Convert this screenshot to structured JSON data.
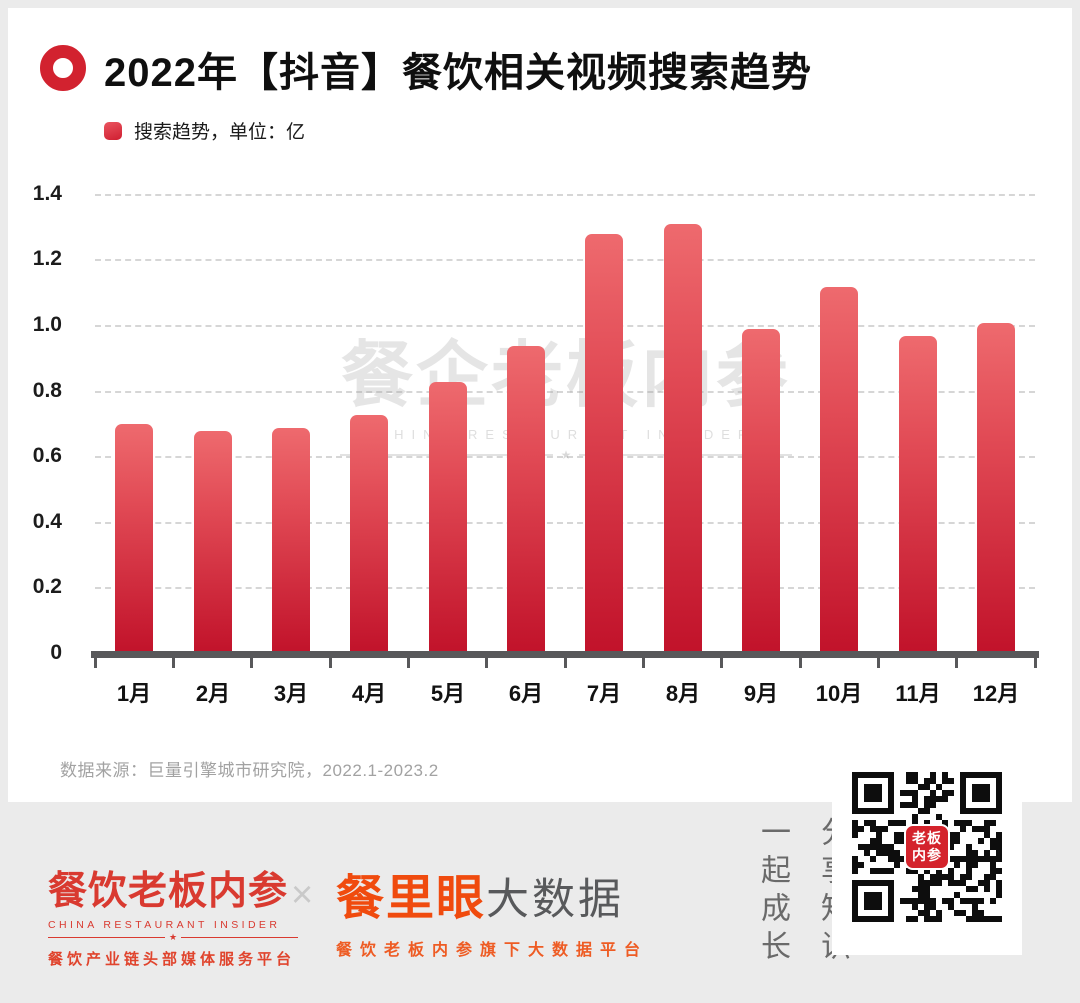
{
  "header": {
    "title": "2022年【抖音】餐饮相关视频搜索趋势",
    "legend_label": "搜索趋势，单位：亿"
  },
  "chart_data": {
    "type": "bar",
    "title": "2022年【抖音】餐饮相关视频搜索趋势",
    "legend": "搜索趋势，单位：亿",
    "unit": "亿",
    "categories": [
      "1月",
      "2月",
      "3月",
      "4月",
      "5月",
      "6月",
      "7月",
      "8月",
      "9月",
      "10月",
      "11月",
      "12月"
    ],
    "values": [
      0.7,
      0.68,
      0.69,
      0.73,
      0.83,
      0.94,
      1.28,
      1.31,
      0.99,
      1.12,
      0.97,
      1.01
    ],
    "xlabel": "",
    "ylabel": "",
    "ylim": [
      0,
      1.4
    ],
    "yticks": [
      0,
      0.2,
      0.4,
      0.6,
      0.8,
      1.0,
      1.2,
      1.4
    ],
    "ytick_labels": [
      "0",
      "0.2",
      "0.4",
      "0.6",
      "0.8",
      "1.0",
      "1.2",
      "1.4"
    ],
    "grid": "horizontal-dashed",
    "legend_position": "top-left",
    "bar_color_top": "#ee6a6e",
    "bar_color_bottom": "#c1122a"
  },
  "watermark": {
    "cn": "餐企老板内参",
    "en": "CHINA RESTAURANT INSIDER",
    "star": "★"
  },
  "source": {
    "text": "数据来源：巨量引擎城市研究院，2022.1-2023.2"
  },
  "footer": {
    "brand1": {
      "name": "餐饮老板内参",
      "english": "CHINA RESTAURANT INSIDER",
      "star": "★",
      "tagline": "餐饮产业链头部媒体服务平台"
    },
    "separator": "×",
    "brand2": {
      "name_highlight": "餐里眼",
      "name_rest": "大数据",
      "tagline": "餐饮老板内参旗下大数据平台"
    },
    "slogan": {
      "col1": "一起成长",
      "col2": "分享知识"
    },
    "qr_badge": {
      "line1": "老板",
      "line2": "内参"
    }
  },
  "colors": {
    "accent_red": "#d2222f",
    "bar_top": "#ee6a6e",
    "bar_bottom": "#c1122a",
    "axis": "#58585a",
    "gridline": "#d6d6d6",
    "band_bg": "#ebebeb",
    "brand1_red": "#d93a30",
    "brand2_orange": "#f04b0e",
    "brand2_gray": "#58595b",
    "source_gray": "#a2a2a2"
  }
}
